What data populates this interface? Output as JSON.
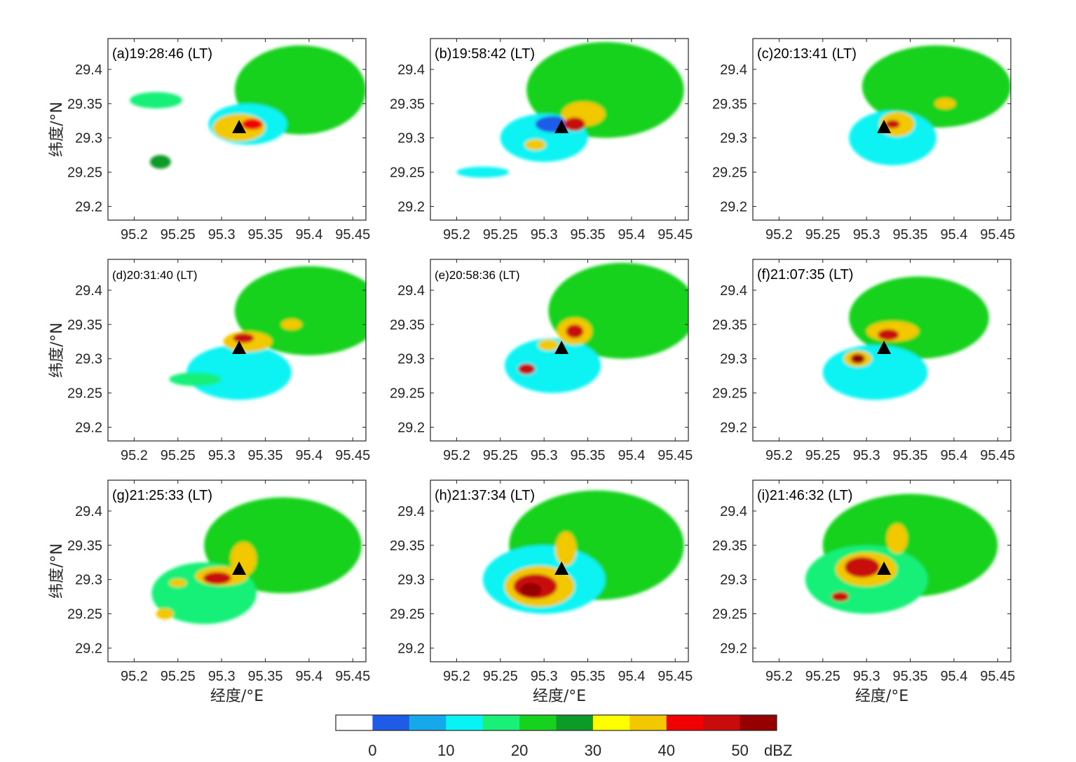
{
  "panels": [
    {
      "label": "(a)19:28:46 (LT)",
      "small": false
    },
    {
      "label": "(b)19:58:42 (LT)",
      "small": false
    },
    {
      "label": "(c)20:13:41 (LT)",
      "small": false
    },
    {
      "label": "(d)20:31:40 (LT)",
      "small": true
    },
    {
      "label": "(e)20:58:36 (LT)",
      "small": true
    },
    {
      "label": "(f)21:07:35 (LT)",
      "small": false
    },
    {
      "label": "(g)21:25:33 (LT)",
      "small": false
    },
    {
      "label": "(h)21:37:34 (LT)",
      "small": false
    },
    {
      "label": "(i)21:46:32 (LT)",
      "small": false
    }
  ],
  "axes": {
    "xlabel": "经度/°E",
    "ylabel": "纬度/°N",
    "xticks": [
      "95.2",
      "95.25",
      "95.3",
      "95.35",
      "95.4",
      "95.45"
    ],
    "yticks": [
      "29.4",
      "29.35",
      "29.3",
      "29.25",
      "29.2"
    ],
    "xlim": [
      95.17,
      95.465
    ],
    "ylim": [
      29.18,
      29.445
    ]
  },
  "station": {
    "lon": 95.32,
    "lat": 29.315,
    "marker": "black-triangle-icon"
  },
  "colorbar": {
    "unit": "dBZ",
    "tick_labels": [
      "0",
      "10",
      "20",
      "30",
      "40",
      "50"
    ],
    "colors": [
      "#ffffff",
      "#1e5be6",
      "#16a8ea",
      "#08f3f3",
      "#19f078",
      "#14d21e",
      "#0c9a28",
      "#ffff00",
      "#f2c800",
      "#f00000",
      "#c80c0c",
      "#960000"
    ]
  },
  "echo_cells": [
    [
      {
        "lon": 95.39,
        "lat": 29.37,
        "rx": 0.075,
        "ry": 0.065,
        "level": 5
      },
      {
        "lon": 95.33,
        "lat": 29.32,
        "rx": 0.045,
        "ry": 0.03,
        "level": 3
      },
      {
        "lon": 95.32,
        "lat": 29.315,
        "rx": 0.03,
        "ry": 0.02,
        "level": 8
      },
      {
        "lon": 95.335,
        "lat": 29.32,
        "rx": 0.012,
        "ry": 0.008,
        "level": 9
      },
      {
        "lon": 95.23,
        "lat": 29.265,
        "rx": 0.012,
        "ry": 0.01,
        "level": 6
      },
      {
        "lon": 95.225,
        "lat": 29.355,
        "rx": 0.03,
        "ry": 0.012,
        "level": 4
      }
    ],
    [
      {
        "lon": 95.37,
        "lat": 29.37,
        "rx": 0.09,
        "ry": 0.07,
        "level": 5
      },
      {
        "lon": 95.3,
        "lat": 29.3,
        "rx": 0.05,
        "ry": 0.035,
        "level": 3
      },
      {
        "lon": 95.31,
        "lat": 29.32,
        "rx": 0.02,
        "ry": 0.012,
        "level": 1
      },
      {
        "lon": 95.345,
        "lat": 29.335,
        "rx": 0.025,
        "ry": 0.018,
        "level": 8
      },
      {
        "lon": 95.335,
        "lat": 29.32,
        "rx": 0.012,
        "ry": 0.01,
        "level": 10
      },
      {
        "lon": 95.29,
        "lat": 29.29,
        "rx": 0.012,
        "ry": 0.008,
        "level": 8
      },
      {
        "lon": 95.23,
        "lat": 29.25,
        "rx": 0.03,
        "ry": 0.008,
        "level": 3
      }
    ],
    [
      {
        "lon": 95.38,
        "lat": 29.375,
        "rx": 0.085,
        "ry": 0.06,
        "level": 5
      },
      {
        "lon": 95.33,
        "lat": 29.3,
        "rx": 0.05,
        "ry": 0.04,
        "level": 3
      },
      {
        "lon": 95.335,
        "lat": 29.32,
        "rx": 0.02,
        "ry": 0.018,
        "level": 8
      },
      {
        "lon": 95.33,
        "lat": 29.32,
        "rx": 0.008,
        "ry": 0.006,
        "level": 10
      },
      {
        "lon": 95.39,
        "lat": 29.35,
        "rx": 0.012,
        "ry": 0.008,
        "level": 8
      }
    ],
    [
      {
        "lon": 95.4,
        "lat": 29.37,
        "rx": 0.085,
        "ry": 0.065,
        "level": 5
      },
      {
        "lon": 95.32,
        "lat": 29.28,
        "rx": 0.06,
        "ry": 0.04,
        "level": 3
      },
      {
        "lon": 95.33,
        "lat": 29.325,
        "rx": 0.028,
        "ry": 0.015,
        "level": 8
      },
      {
        "lon": 95.325,
        "lat": 29.33,
        "rx": 0.012,
        "ry": 0.007,
        "level": 10
      },
      {
        "lon": 95.38,
        "lat": 29.35,
        "rx": 0.012,
        "ry": 0.008,
        "level": 8
      },
      {
        "lon": 95.27,
        "lat": 29.27,
        "rx": 0.03,
        "ry": 0.01,
        "level": 4
      }
    ],
    [
      {
        "lon": 95.39,
        "lat": 29.37,
        "rx": 0.085,
        "ry": 0.07,
        "level": 5
      },
      {
        "lon": 95.31,
        "lat": 29.29,
        "rx": 0.055,
        "ry": 0.04,
        "level": 3
      },
      {
        "lon": 95.335,
        "lat": 29.34,
        "rx": 0.02,
        "ry": 0.02,
        "level": 8
      },
      {
        "lon": 95.335,
        "lat": 29.34,
        "rx": 0.01,
        "ry": 0.01,
        "level": 10
      },
      {
        "lon": 95.305,
        "lat": 29.32,
        "rx": 0.012,
        "ry": 0.008,
        "level": 8
      },
      {
        "lon": 95.28,
        "lat": 29.285,
        "rx": 0.01,
        "ry": 0.008,
        "level": 10
      }
    ],
    [
      {
        "lon": 95.36,
        "lat": 29.36,
        "rx": 0.08,
        "ry": 0.06,
        "level": 5
      },
      {
        "lon": 95.31,
        "lat": 29.28,
        "rx": 0.06,
        "ry": 0.04,
        "level": 3
      },
      {
        "lon": 95.33,
        "lat": 29.34,
        "rx": 0.03,
        "ry": 0.015,
        "level": 8
      },
      {
        "lon": 95.325,
        "lat": 29.335,
        "rx": 0.012,
        "ry": 0.008,
        "level": 10
      },
      {
        "lon": 95.29,
        "lat": 29.3,
        "rx": 0.016,
        "ry": 0.012,
        "level": 8
      },
      {
        "lon": 95.29,
        "lat": 29.3,
        "rx": 0.008,
        "ry": 0.007,
        "level": 11
      }
    ],
    [
      {
        "lon": 95.37,
        "lat": 29.35,
        "rx": 0.09,
        "ry": 0.07,
        "level": 5
      },
      {
        "lon": 95.28,
        "lat": 29.28,
        "rx": 0.06,
        "ry": 0.045,
        "level": 4
      },
      {
        "lon": 95.325,
        "lat": 29.33,
        "rx": 0.015,
        "ry": 0.025,
        "level": 8
      },
      {
        "lon": 95.3,
        "lat": 29.305,
        "rx": 0.03,
        "ry": 0.014,
        "level": 8
      },
      {
        "lon": 95.295,
        "lat": 29.302,
        "rx": 0.016,
        "ry": 0.009,
        "level": 10
      },
      {
        "lon": 95.25,
        "lat": 29.295,
        "rx": 0.01,
        "ry": 0.006,
        "level": 8
      },
      {
        "lon": 95.235,
        "lat": 29.25,
        "rx": 0.01,
        "ry": 0.008,
        "level": 8
      }
    ],
    [
      {
        "lon": 95.36,
        "lat": 29.35,
        "rx": 0.1,
        "ry": 0.08,
        "level": 5
      },
      {
        "lon": 95.3,
        "lat": 29.3,
        "rx": 0.07,
        "ry": 0.05,
        "level": 3
      },
      {
        "lon": 95.295,
        "lat": 29.29,
        "rx": 0.04,
        "ry": 0.03,
        "level": 8
      },
      {
        "lon": 95.29,
        "lat": 29.29,
        "rx": 0.025,
        "ry": 0.018,
        "level": 10
      },
      {
        "lon": 95.285,
        "lat": 29.285,
        "rx": 0.012,
        "ry": 0.01,
        "level": 11
      },
      {
        "lon": 95.325,
        "lat": 29.345,
        "rx": 0.012,
        "ry": 0.025,
        "level": 8
      }
    ],
    [
      {
        "lon": 95.35,
        "lat": 29.35,
        "rx": 0.1,
        "ry": 0.075,
        "level": 5
      },
      {
        "lon": 95.3,
        "lat": 29.3,
        "rx": 0.07,
        "ry": 0.05,
        "level": 4
      },
      {
        "lon": 95.3,
        "lat": 29.315,
        "rx": 0.035,
        "ry": 0.025,
        "level": 8
      },
      {
        "lon": 95.295,
        "lat": 29.318,
        "rx": 0.02,
        "ry": 0.015,
        "level": 10
      },
      {
        "lon": 95.335,
        "lat": 29.36,
        "rx": 0.012,
        "ry": 0.022,
        "level": 8
      },
      {
        "lon": 95.27,
        "lat": 29.275,
        "rx": 0.01,
        "ry": 0.007,
        "level": 10
      }
    ]
  ]
}
